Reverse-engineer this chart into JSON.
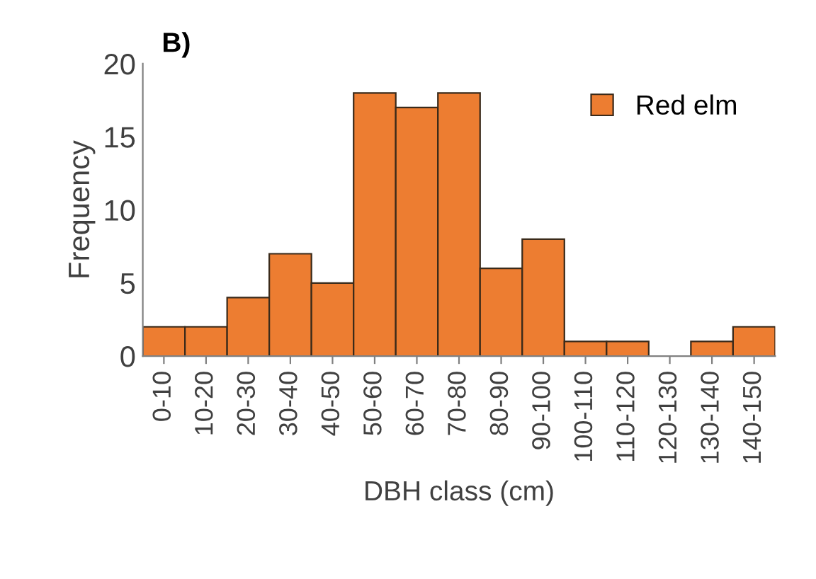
{
  "chart_data": {
    "type": "bar",
    "title": "B)",
    "xlabel": "DBH class (cm)",
    "ylabel": "Frequency",
    "categories": [
      "0-10",
      "10-20",
      "20-30",
      "30-40",
      "40-50",
      "50-60",
      "60-70",
      "70-80",
      "80-90",
      "90-100",
      "100-110",
      "110-120",
      "120-130",
      "130-140",
      "140-150"
    ],
    "series": [
      {
        "name": "Red elm",
        "color": "#ed7d31",
        "values": [
          2,
          2,
          4,
          7,
          5,
          18,
          17,
          18,
          6,
          8,
          1,
          1,
          0,
          1,
          2
        ]
      }
    ],
    "ylim": [
      0,
      20
    ],
    "yticks": [
      0,
      5,
      10,
      15,
      20
    ],
    "grid": false,
    "legend": "top right"
  }
}
